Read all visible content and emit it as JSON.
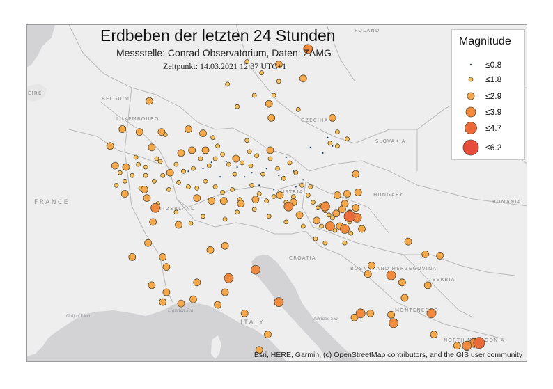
{
  "map": {
    "title": "Erdbeben der letzten 24 Stunden",
    "subtitle": "Messstelle: Conrad Observatorium, Daten: ZAMG",
    "timestamp": "Zeitpunkt: 14.03.2021 12:37 UTC+1",
    "attribution": "Esri, HERE, Garmin, (c) OpenStreetMap contributors, and the GIS user community",
    "colors": {
      "land": "#eeeeee",
      "sea": "#d3d3d6",
      "border": "#b9b9b9",
      "marker_outline": "#5a4a30"
    },
    "countries": [
      {
        "label": "POLAND"
      },
      {
        "label": "BELGIUM"
      },
      {
        "label": "LUXEMBOURG"
      },
      {
        "label": "CZECHIA"
      },
      {
        "label": "SLOVAKIA"
      },
      {
        "label": "AUSTRIA"
      },
      {
        "label": "HUNGARY"
      },
      {
        "label": "ROMANIA"
      },
      {
        "label": "FRANCE"
      },
      {
        "label": "SWITZERLAND"
      },
      {
        "label": "CROATIA"
      },
      {
        "label": "BOSNIA AND HERZEGOVINA"
      },
      {
        "label": "SERBIA"
      },
      {
        "label": "MONTENEGRO"
      },
      {
        "label": "NORTH MACEDONIA"
      },
      {
        "label": "ITALY"
      },
      {
        "label": "ÉIRE"
      }
    ],
    "seas": [
      {
        "label": "Ligurian Sea"
      },
      {
        "label": "Gulf of Lion"
      },
      {
        "label": "Adriatic Sea"
      }
    ]
  },
  "legend": {
    "title": "Magnitude",
    "classes": [
      {
        "label": "≤0.8",
        "color": "#1f3b5a"
      },
      {
        "label": "≤1.8",
        "color": "#f6c15a"
      },
      {
        "label": "≤2.9",
        "color": "#f5a94b"
      },
      {
        "label": "≤3.9",
        "color": "#ef8a3e"
      },
      {
        "label": "≤4.7",
        "color": "#ec6a3a"
      },
      {
        "label": "≤6.2",
        "color": "#e84a3c"
      }
    ]
  },
  "events": {
    "class_0": [
      [
        10.55,
        47.42
      ],
      [
        11.15,
        47.45
      ],
      [
        11.6,
        47.25
      ],
      [
        12.2,
        47.05
      ],
      [
        12.8,
        47.2
      ],
      [
        13.3,
        46.95
      ],
      [
        13.9,
        47.1
      ],
      [
        14.3,
        46.8
      ],
      [
        11.9,
        46.9
      ],
      [
        10.2,
        47.2
      ],
      [
        12.5,
        46.6
      ],
      [
        13.6,
        47.6
      ],
      [
        14.6,
        47.95
      ],
      [
        15.1,
        47.75
      ],
      [
        14.0,
        46.55
      ],
      [
        13.1,
        46.45
      ],
      [
        10.9,
        46.9
      ],
      [
        9.6,
        47.1
      ],
      [
        15.5,
        48.0
      ],
      [
        15.3,
        48.3
      ]
    ],
    "class_1": [
      [
        12.0,
        51.0
      ],
      [
        12.6,
        50.6
      ],
      [
        13.3,
        50.3
      ],
      [
        11.2,
        50.2
      ],
      [
        12.3,
        49.8
      ],
      [
        11.6,
        49.4
      ],
      [
        13.1,
        49.8
      ],
      [
        14.1,
        49.3
      ],
      [
        10.6,
        48.3
      ],
      [
        10.8,
        48.0
      ],
      [
        12.0,
        48.2
      ],
      [
        12.1,
        47.8
      ],
      [
        15.7,
        48.5
      ],
      [
        15.4,
        48.1
      ],
      [
        16.1,
        48.25
      ],
      [
        15.7,
        48.0
      ],
      [
        8.65,
        48.4
      ],
      [
        8.3,
        47.55
      ],
      [
        7.45,
        47.6
      ],
      [
        7.55,
        47.35
      ],
      [
        7.85,
        47.25
      ],
      [
        8.45,
        47.45
      ],
      [
        9.1,
        47.35
      ],
      [
        9.4,
        47.1
      ],
      [
        9.8,
        47.2
      ],
      [
        10.1,
        47.55
      ],
      [
        10.45,
        47.3
      ],
      [
        10.7,
        47.55
      ],
      [
        11.0,
        47.7
      ],
      [
        11.25,
        47.35
      ],
      [
        11.5,
        47.0
      ],
      [
        11.8,
        47.4
      ],
      [
        12.15,
        47.3
      ],
      [
        12.4,
        47.65
      ],
      [
        12.65,
        47.0
      ],
      [
        12.95,
        47.55
      ],
      [
        13.25,
        47.2
      ],
      [
        13.5,
        46.85
      ],
      [
        13.75,
        47.4
      ],
      [
        14.0,
        47.05
      ],
      [
        14.25,
        46.6
      ],
      [
        14.5,
        46.25
      ],
      [
        14.7,
        46.0
      ],
      [
        14.9,
        45.8
      ],
      [
        15.05,
        45.9
      ],
      [
        15.2,
        45.7
      ],
      [
        15.35,
        45.55
      ],
      [
        15.5,
        45.45
      ],
      [
        15.25,
        45.95
      ],
      [
        14.6,
        46.55
      ],
      [
        13.9,
        46.2
      ],
      [
        13.6,
        46.0
      ],
      [
        13.1,
        46.2
      ],
      [
        12.8,
        46.05
      ],
      [
        12.5,
        46.3
      ],
      [
        12.2,
        46.6
      ],
      [
        11.7,
        46.1
      ],
      [
        11.4,
        46.45
      ],
      [
        11.0,
        46.35
      ],
      [
        10.7,
        46.55
      ],
      [
        10.3,
        46.75
      ],
      [
        9.95,
        46.5
      ],
      [
        9.6,
        46.55
      ],
      [
        9.2,
        46.7
      ],
      [
        8.8,
        46.45
      ],
      [
        8.55,
        46.95
      ],
      [
        8.2,
        46.75
      ],
      [
        7.85,
        46.95
      ],
      [
        7.65,
        46.5
      ],
      [
        7.3,
        46.95
      ],
      [
        7.0,
        46.75
      ],
      [
        6.8,
        47.05
      ],
      [
        6.65,
        46.6
      ],
      [
        8.35,
        45.95
      ],
      [
        9.1,
        45.65
      ],
      [
        9.7,
        45.25
      ],
      [
        10.2,
        45.5
      ],
      [
        11.1,
        45.4
      ],
      [
        11.6,
        45.65
      ],
      [
        12.3,
        45.75
      ],
      [
        12.9,
        45.5
      ],
      [
        13.6,
        45.3
      ],
      [
        14.3,
        45.15
      ],
      [
        15.05,
        45.15
      ],
      [
        15.6,
        45.0
      ],
      [
        16.25,
        44.9
      ],
      [
        14.8,
        44.7
      ],
      [
        15.2,
        44.55
      ],
      [
        16.0,
        44.55
      ],
      [
        15.9,
        45.1
      ],
      [
        16.2,
        45.3
      ]
    ],
    "class_2": [
      [
        13.3,
        50.9
      ],
      [
        14.3,
        50.4
      ],
      [
        12.9,
        49.5
      ],
      [
        13.0,
        49.0
      ],
      [
        15.5,
        49.0
      ],
      [
        8.0,
        49.6
      ],
      [
        7.6,
        48.5
      ],
      [
        6.9,
        48.6
      ],
      [
        8.5,
        48.5
      ],
      [
        9.6,
        48.6
      ],
      [
        10.2,
        48.45
      ],
      [
        6.4,
        48.0
      ],
      [
        6.6,
        47.3
      ],
      [
        7.05,
        47.25
      ],
      [
        8.1,
        47.95
      ],
      [
        9.3,
        47.75
      ],
      [
        9.75,
        47.85
      ],
      [
        10.3,
        47.85
      ],
      [
        11.55,
        47.55
      ],
      [
        12.95,
        47.85
      ],
      [
        8.85,
        47.05
      ],
      [
        7.8,
        46.45
      ],
      [
        7.0,
        46.3
      ],
      [
        7.9,
        46.15
      ],
      [
        9.95,
        46.15
      ],
      [
        10.55,
        46.05
      ],
      [
        11.05,
        46.05
      ],
      [
        11.75,
        45.95
      ],
      [
        12.35,
        46.1
      ],
      [
        13.35,
        46.25
      ],
      [
        14.15,
        45.55
      ],
      [
        13.9,
        46.0
      ],
      [
        14.85,
        45.35
      ],
      [
        15.7,
        46.25
      ],
      [
        16.55,
        46.35
      ],
      [
        16.45,
        47.0
      ],
      [
        16.1,
        46.3
      ],
      [
        15.65,
        45.6
      ],
      [
        15.9,
        45.75
      ],
      [
        16.0,
        45.95
      ],
      [
        16.45,
        45.8
      ],
      [
        15.8,
        45.15
      ],
      [
        16.7,
        45.05
      ],
      [
        16.5,
        45.45
      ],
      [
        16.2,
        45.6
      ],
      [
        18.6,
        44.6
      ],
      [
        19.3,
        44.15
      ],
      [
        19.9,
        44.1
      ],
      [
        7.3,
        44.05
      ],
      [
        8.15,
        45.3
      ],
      [
        9.2,
        45.2
      ],
      [
        8.7,
        43.7
      ],
      [
        8.1,
        43.05
      ],
      [
        8.7,
        42.8
      ],
      [
        8.55,
        42.45
      ],
      [
        9.3,
        42.4
      ],
      [
        9.95,
        43.15
      ],
      [
        9.8,
        42.55
      ],
      [
        10.8,
        42.35
      ],
      [
        11.1,
        42.8
      ],
      [
        11.9,
        42.05
      ],
      [
        12.85,
        41.3
      ],
      [
        12.5,
        40.75
      ],
      [
        10.5,
        44.3
      ],
      [
        11.1,
        44.45
      ],
      [
        8.55,
        44.05
      ],
      [
        7.95,
        44.55
      ],
      [
        16.4,
        41.9
      ],
      [
        17.05,
        42.05
      ],
      [
        17.9,
        42.0
      ],
      [
        18.45,
        42.6
      ],
      [
        19.4,
        43.05
      ],
      [
        17.1,
        43.75
      ],
      [
        18.35,
        43.15
      ],
      [
        16.95,
        43.45
      ],
      [
        19.65,
        41.3
      ],
      [
        20.6,
        40.9
      ],
      [
        21.0,
        40.85
      ]
    ],
    "class_3": [
      [
        14.5,
        51.45
      ],
      [
        15.2,
        45.85
      ],
      [
        16.0,
        45.05
      ],
      [
        15.4,
        45.15
      ],
      [
        8.25,
        45.8
      ],
      [
        13.7,
        45.85
      ],
      [
        11.25,
        43.3
      ],
      [
        12.35,
        43.6
      ],
      [
        13.3,
        42.45
      ],
      [
        17.9,
        43.4
      ],
      [
        19.55,
        42.05
      ],
      [
        18.0,
        41.7
      ],
      [
        16.65,
        42.05
      ],
      [
        16.5,
        45.45
      ],
      [
        21.3,
        41.0
      ],
      [
        21.0,
        40.9
      ]
    ],
    "class_4": [
      [
        21.5,
        41.0
      ],
      [
        16.2,
        45.5
      ]
    ]
  }
}
